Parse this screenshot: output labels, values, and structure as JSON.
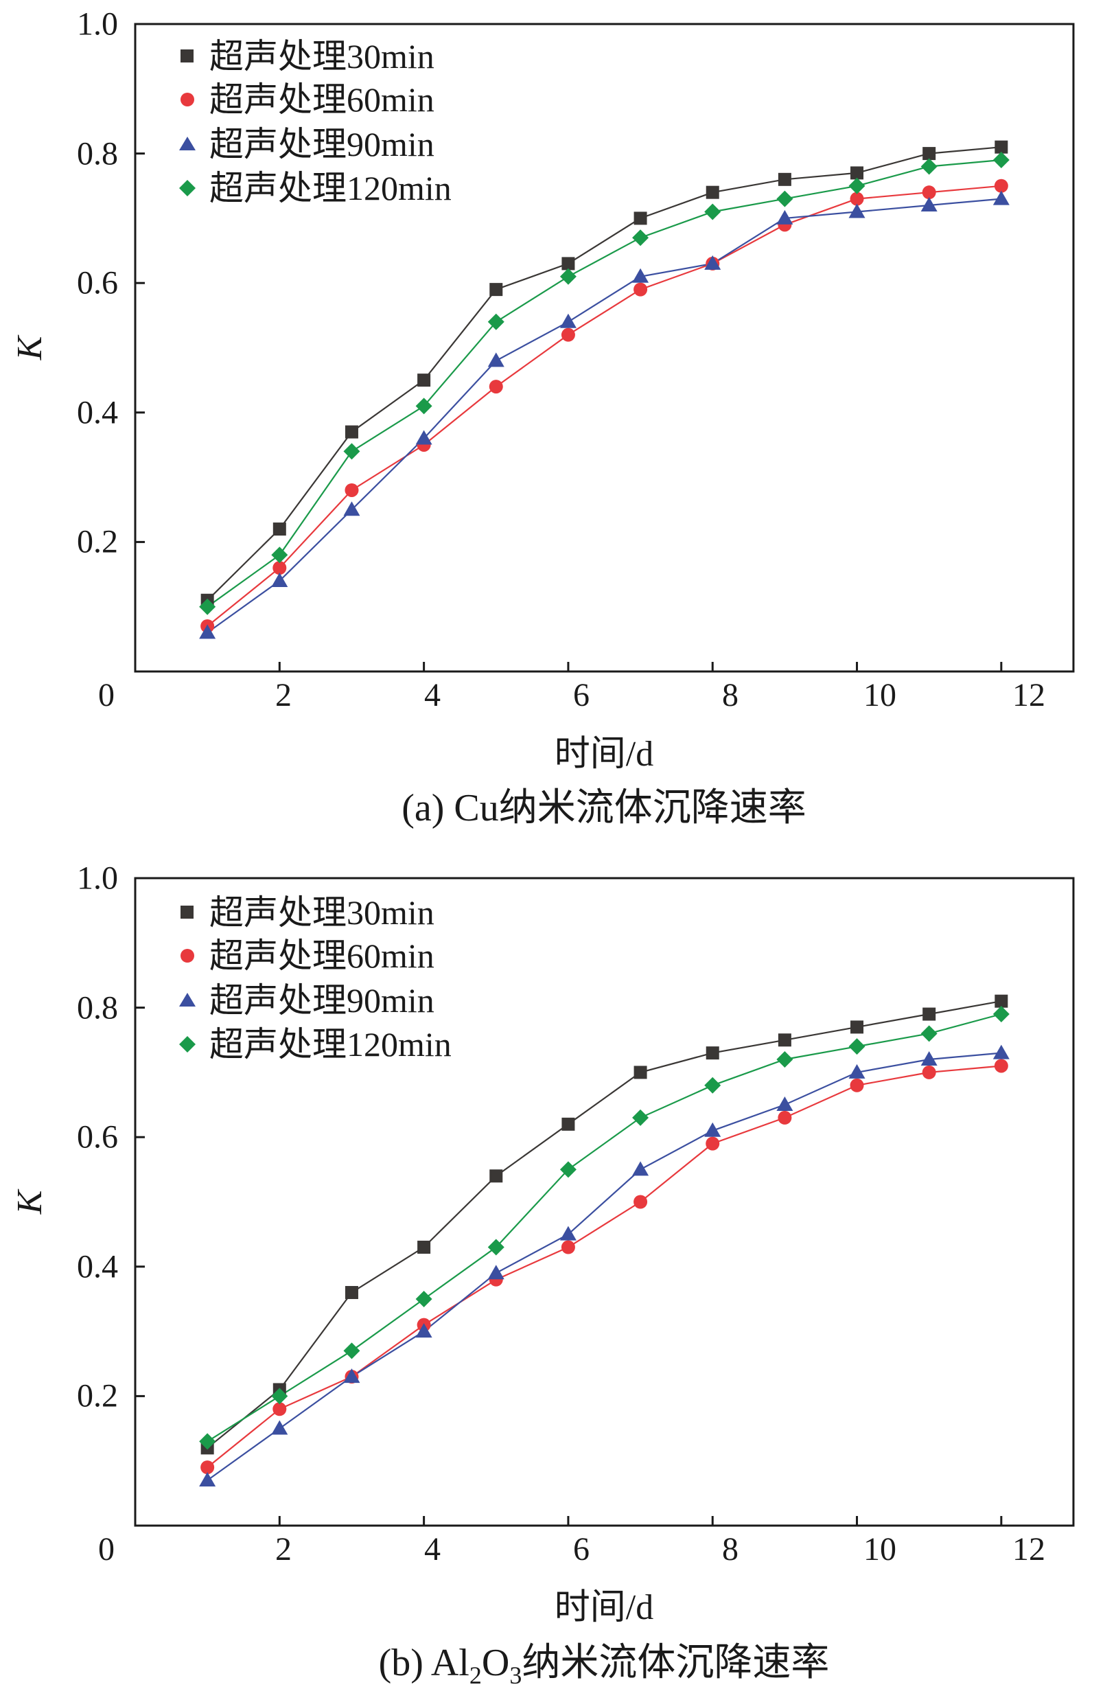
{
  "chart_data": [
    {
      "type": "line",
      "panel": "a",
      "caption": "(a) Cu纳米流体沉降速率",
      "xlabel": "时间/d",
      "ylabel": "K",
      "xlim": [
        0,
        13
      ],
      "ylim": [
        0,
        1.0
      ],
      "x_ticks": [
        "0",
        "2",
        "4",
        "6",
        "8",
        "10",
        "12"
      ],
      "y_ticks": [
        "0.2",
        "0.4",
        "0.6",
        "0.8",
        "1.0"
      ],
      "legend_position": "top-left",
      "x": [
        1,
        2,
        3,
        4,
        5,
        6,
        7,
        8,
        9,
        10,
        11,
        12
      ],
      "series": [
        {
          "name": "超声处理30min",
          "color": "#3a3735",
          "marker": "square",
          "values": [
            0.11,
            0.22,
            0.37,
            0.45,
            0.59,
            0.63,
            0.7,
            0.74,
            0.76,
            0.77,
            0.8,
            0.81
          ]
        },
        {
          "name": "超声处理60min",
          "color": "#e8393d",
          "marker": "circle",
          "values": [
            0.07,
            0.16,
            0.28,
            0.35,
            0.44,
            0.52,
            0.59,
            0.63,
            0.69,
            0.73,
            0.74,
            0.75
          ]
        },
        {
          "name": "超声处理90min",
          "color": "#3b4fa0",
          "marker": "triangle",
          "values": [
            0.06,
            0.14,
            0.25,
            0.36,
            0.48,
            0.54,
            0.61,
            0.63,
            0.7,
            0.71,
            0.72,
            0.73
          ]
        },
        {
          "name": "超声处理120min",
          "color": "#1a9a4a",
          "marker": "diamond",
          "values": [
            0.1,
            0.18,
            0.34,
            0.41,
            0.54,
            0.61,
            0.67,
            0.71,
            0.73,
            0.75,
            0.78,
            0.79
          ]
        }
      ]
    },
    {
      "type": "line",
      "panel": "b",
      "caption_prefix": "(b) Al",
      "caption_sub1": "2",
      "caption_mid": "O",
      "caption_sub2": "3",
      "caption_suffix": "纳米流体沉降速率",
      "xlabel": "时间/d",
      "ylabel": "K",
      "xlim": [
        0,
        13
      ],
      "ylim": [
        0,
        1.0
      ],
      "x_ticks": [
        "0",
        "2",
        "4",
        "6",
        "8",
        "10",
        "12"
      ],
      "y_ticks": [
        "0.2",
        "0.4",
        "0.6",
        "0.8",
        "1.0"
      ],
      "legend_position": "top-left",
      "x": [
        1,
        2,
        3,
        4,
        5,
        6,
        7,
        8,
        9,
        10,
        11,
        12
      ],
      "series": [
        {
          "name": "超声处理30min",
          "color": "#3a3735",
          "marker": "square",
          "values": [
            0.12,
            0.21,
            0.36,
            0.43,
            0.54,
            0.62,
            0.7,
            0.73,
            0.75,
            0.77,
            0.79,
            0.81
          ]
        },
        {
          "name": "超声处理60min",
          "color": "#e8393d",
          "marker": "circle",
          "values": [
            0.09,
            0.18,
            0.23,
            0.31,
            0.38,
            0.43,
            0.5,
            0.59,
            0.63,
            0.68,
            0.7,
            0.71
          ]
        },
        {
          "name": "超声处理90min",
          "color": "#3b4fa0",
          "marker": "triangle",
          "values": [
            0.07,
            0.15,
            0.23,
            0.3,
            0.39,
            0.45,
            0.55,
            0.61,
            0.65,
            0.7,
            0.72,
            0.73
          ]
        },
        {
          "name": "超声处理120min",
          "color": "#1a9a4a",
          "marker": "diamond",
          "values": [
            0.13,
            0.2,
            0.27,
            0.35,
            0.43,
            0.55,
            0.63,
            0.68,
            0.72,
            0.74,
            0.76,
            0.79
          ]
        }
      ]
    }
  ]
}
